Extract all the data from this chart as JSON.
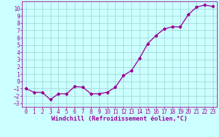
{
  "x": [
    0,
    1,
    2,
    3,
    4,
    5,
    6,
    7,
    8,
    9,
    10,
    11,
    12,
    13,
    14,
    15,
    16,
    17,
    18,
    19,
    20,
    21,
    22,
    23
  ],
  "y": [
    -1.0,
    -1.5,
    -1.5,
    -2.5,
    -1.7,
    -1.7,
    -0.7,
    -0.8,
    -1.7,
    -1.7,
    -1.5,
    -0.8,
    0.8,
    1.5,
    3.2,
    5.2,
    6.3,
    7.2,
    7.5,
    7.5,
    9.2,
    10.2,
    10.5,
    10.3
  ],
  "line_color": "#990099",
  "marker": "D",
  "marker_size": 2.0,
  "bg_color": "#ccffff",
  "grid_color": "#99cccc",
  "xlabel": "Windchill (Refroidissement éolien,°C)",
  "xlim": [
    -0.5,
    23.5
  ],
  "ylim": [
    -3.5,
    11.0
  ],
  "xticks": [
    0,
    1,
    2,
    3,
    4,
    5,
    6,
    7,
    8,
    9,
    10,
    11,
    12,
    13,
    14,
    15,
    16,
    17,
    18,
    19,
    20,
    21,
    22,
    23
  ],
  "yticks": [
    -3,
    -2,
    -1,
    0,
    1,
    2,
    3,
    4,
    5,
    6,
    7,
    8,
    9,
    10
  ],
  "xlabel_fontsize": 6.5,
  "tick_fontsize": 5.5,
  "line_width": 1.0
}
